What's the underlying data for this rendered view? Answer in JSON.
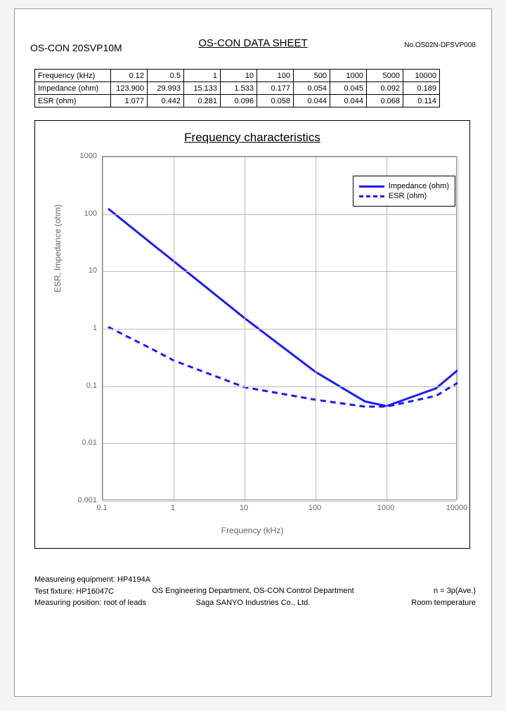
{
  "header": {
    "title": "OS-CON DATA SHEET",
    "model": "OS-CON 20SVP10M",
    "docno": "No.OS02N-DFSVP008"
  },
  "table": {
    "rows": [
      {
        "label": "Frequency (kHz)",
        "values": [
          "0.12",
          "0.5",
          "1",
          "10",
          "100",
          "500",
          "1000",
          "5000",
          "10000"
        ]
      },
      {
        "label": "Impedance (ohm)",
        "values": [
          "123.900",
          "29.993",
          "15.133",
          "1.533",
          "0.177",
          "0.054",
          "0.045",
          "0.092",
          "0.189"
        ]
      },
      {
        "label": "ESR (ohm)",
        "values": [
          "1.077",
          "0.442",
          "0.281",
          "0.096",
          "0.058",
          "0.044",
          "0.044",
          "0.068",
          "0.114"
        ]
      }
    ]
  },
  "chart": {
    "title": "Frequency characteristics",
    "xlabel": "Frequency (kHz)",
    "ylabel": "ESR, Impedance (ohm)",
    "xlog_min": -1,
    "xlog_max": 4,
    "ylog_min": -3,
    "ylog_max": 3,
    "xticks": [
      "0.1",
      "1",
      "10",
      "100",
      "1000",
      "10000"
    ],
    "yticks": [
      "0.001",
      "0.01",
      "0.1",
      "1",
      "10",
      "100",
      "1000"
    ],
    "grid_color": "#bbbbbb",
    "series": [
      {
        "name": "Impedance (ohm)",
        "color": "#1a1aff",
        "width": 3,
        "dash": "none",
        "x": [
          0.12,
          0.5,
          1,
          10,
          100,
          500,
          1000,
          5000,
          10000
        ],
        "y": [
          123.9,
          29.993,
          15.133,
          1.533,
          0.177,
          0.054,
          0.045,
          0.092,
          0.189
        ]
      },
      {
        "name": "ESR (ohm)",
        "color": "#1a1aff",
        "width": 3,
        "dash": "8,6",
        "x": [
          0.12,
          0.5,
          1,
          10,
          100,
          500,
          1000,
          5000,
          10000
        ],
        "y": [
          1.077,
          0.442,
          0.281,
          0.096,
          0.058,
          0.044,
          0.044,
          0.068,
          0.114
        ]
      }
    ]
  },
  "footer": {
    "left": [
      "Measureing equipment: HP4194A",
      "Test fixture: HP16047C",
      "Measuring position: root of leads"
    ],
    "center": [
      "OS Engineering Department, OS-CON Control Department",
      "Saga SANYO Industries Co., Ltd."
    ],
    "right": [
      "n = 3p(Ave.)",
      "Room temperature"
    ]
  }
}
